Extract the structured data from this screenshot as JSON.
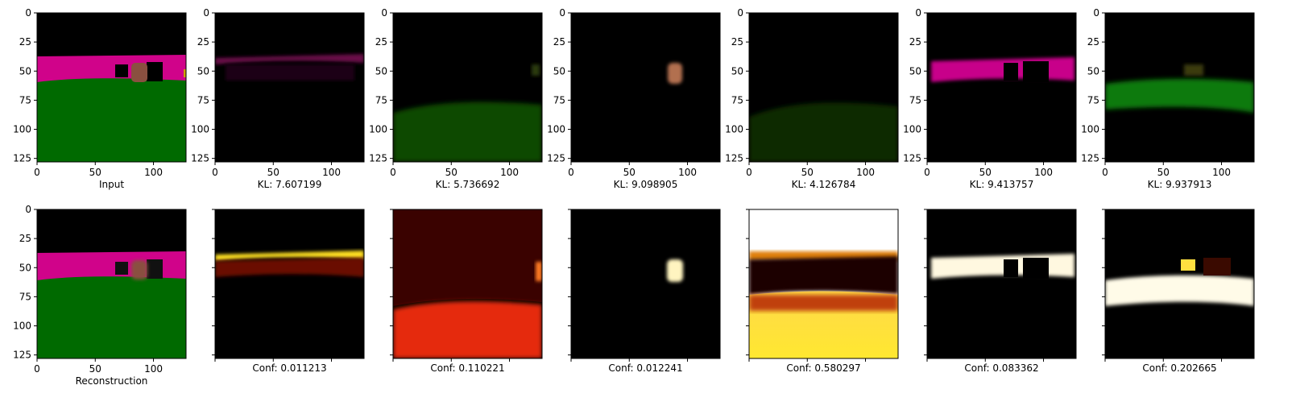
{
  "chart_data": {
    "type": "image-grid",
    "axis": {
      "xlim": [
        0,
        128
      ],
      "ylim": [
        128,
        0
      ],
      "xticks": [
        0,
        50,
        100
      ],
      "yticks": [
        0,
        25,
        50,
        75,
        100,
        125
      ]
    },
    "top_row": [
      {
        "caption": "Input",
        "image": "input-segmentation-image"
      },
      {
        "caption": "KL: 7.607199",
        "image": "component-1-image",
        "kl": 7.607199
      },
      {
        "caption": "KL: 5.736692",
        "image": "component-2-image",
        "kl": 5.736692
      },
      {
        "caption": "KL: 9.098905",
        "image": "component-3-image",
        "kl": 9.098905
      },
      {
        "caption": "KL: 4.126784",
        "image": "component-4-image",
        "kl": 4.126784
      },
      {
        "caption": "KL: 9.413757",
        "image": "component-5-image",
        "kl": 9.413757
      },
      {
        "caption": "KL: 9.937913",
        "image": "component-6-image",
        "kl": 9.937913
      }
    ],
    "bottom_row": [
      {
        "caption": "Reconstruction",
        "image": "reconstruction-image"
      },
      {
        "caption": "Conf: 0.011213",
        "image": "confidence-map-1",
        "conf": 0.011213
      },
      {
        "caption": "Conf: 0.110221",
        "image": "confidence-map-2",
        "conf": 0.110221
      },
      {
        "caption": "Conf: 0.012241",
        "image": "confidence-map-3",
        "conf": 0.012241
      },
      {
        "caption": "Conf: 0.580297",
        "image": "confidence-map-4",
        "conf": 0.580297
      },
      {
        "caption": "Conf: 0.083362",
        "image": "confidence-map-5",
        "conf": 0.083362
      },
      {
        "caption": "Conf: 0.202665",
        "image": "confidence-map-6",
        "conf": 0.202665
      }
    ]
  }
}
